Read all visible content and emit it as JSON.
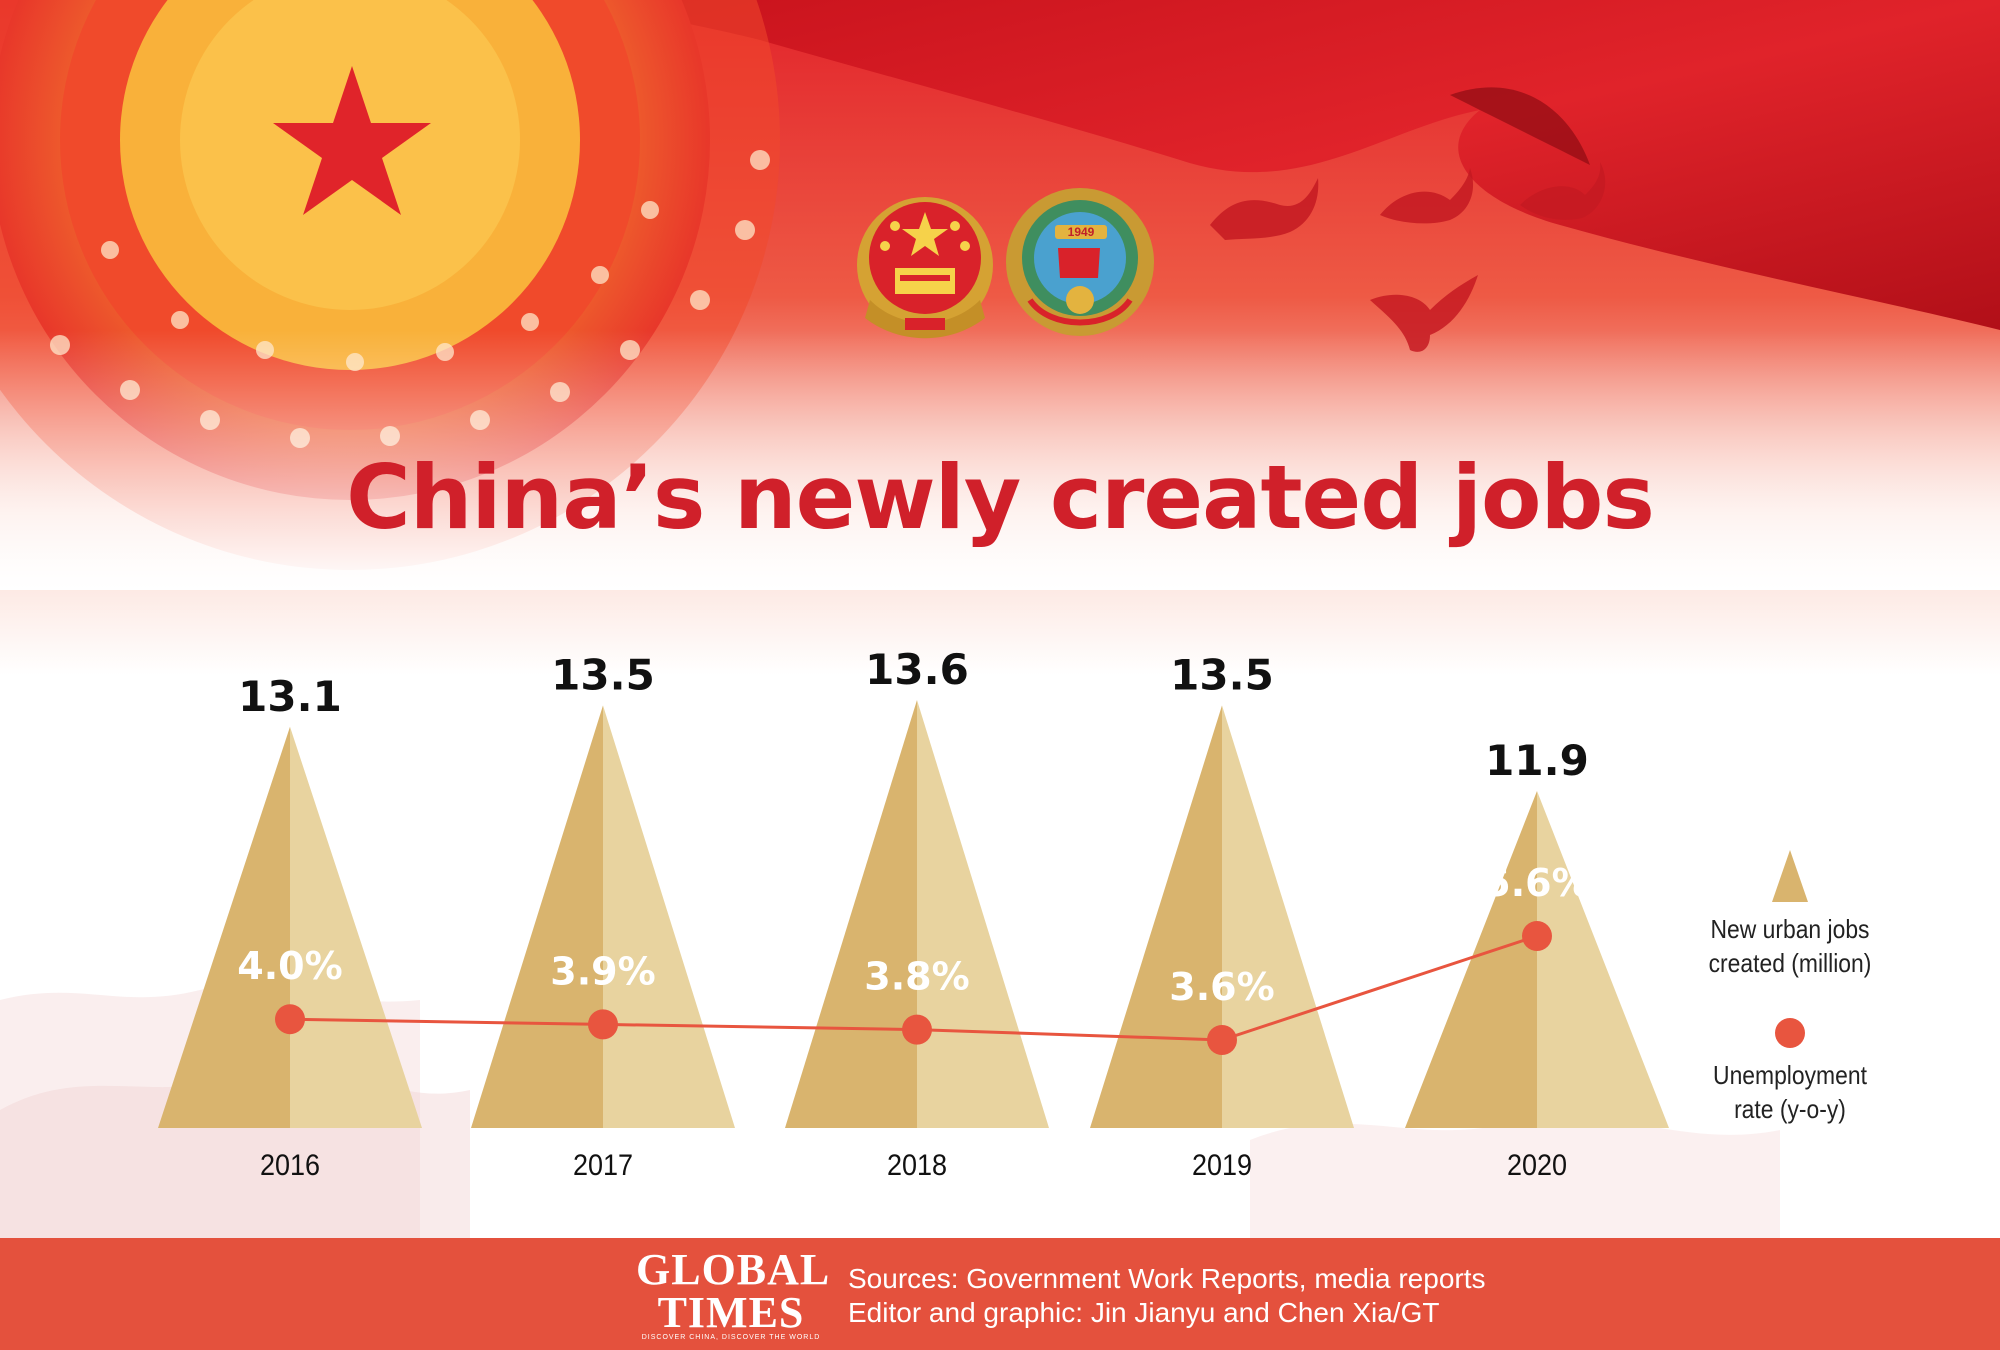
{
  "colors": {
    "title": "#d0202a",
    "triangle_light": "#e8d39f",
    "triangle_dark": "#d9b46e",
    "line": "#e8553f",
    "footer": "#e4513d",
    "banner_red": "#d4202a"
  },
  "header": {
    "title": "China’s newly created jobs",
    "emblems": [
      "national-emblem-icon",
      "cppcc-emblem-icon"
    ],
    "emblem_year": "1949"
  },
  "chart_data": {
    "type": "bar",
    "title": "China’s newly created jobs",
    "categories": [
      "2016",
      "2017",
      "2018",
      "2019",
      "2020"
    ],
    "series": [
      {
        "name": "New urban jobs created (million)",
        "mark": "triangle",
        "values": [
          13.1,
          13.5,
          13.6,
          13.5,
          11.9
        ],
        "labels": [
          "13.1",
          "13.5",
          "13.6",
          "13.5",
          "11.9"
        ]
      },
      {
        "name": "Unemployment rate (y-o-y)",
        "mark": "line-dot",
        "values": [
          4.0,
          3.9,
          3.8,
          3.6,
          5.6
        ],
        "labels": [
          "4.0%",
          "3.9%",
          "3.8%",
          "3.6%",
          "5.6%"
        ]
      }
    ],
    "legend": {
      "position": "right",
      "items": [
        {
          "label_line1": "New urban jobs",
          "label_line2": "created (million)"
        },
        {
          "label_line1": "Unemployment",
          "label_line2": "rate (y-o-y)"
        }
      ]
    },
    "grid": false
  },
  "footer": {
    "logo_line1": "GLOBAL",
    "logo_line2": "TIMES",
    "logo_tagline": "DISCOVER CHINA, DISCOVER THE WORLD",
    "sources": "Sources: Government Work Reports, media reports",
    "editor": "Editor and graphic: Jin Jianyu and Chen Xia/GT"
  }
}
